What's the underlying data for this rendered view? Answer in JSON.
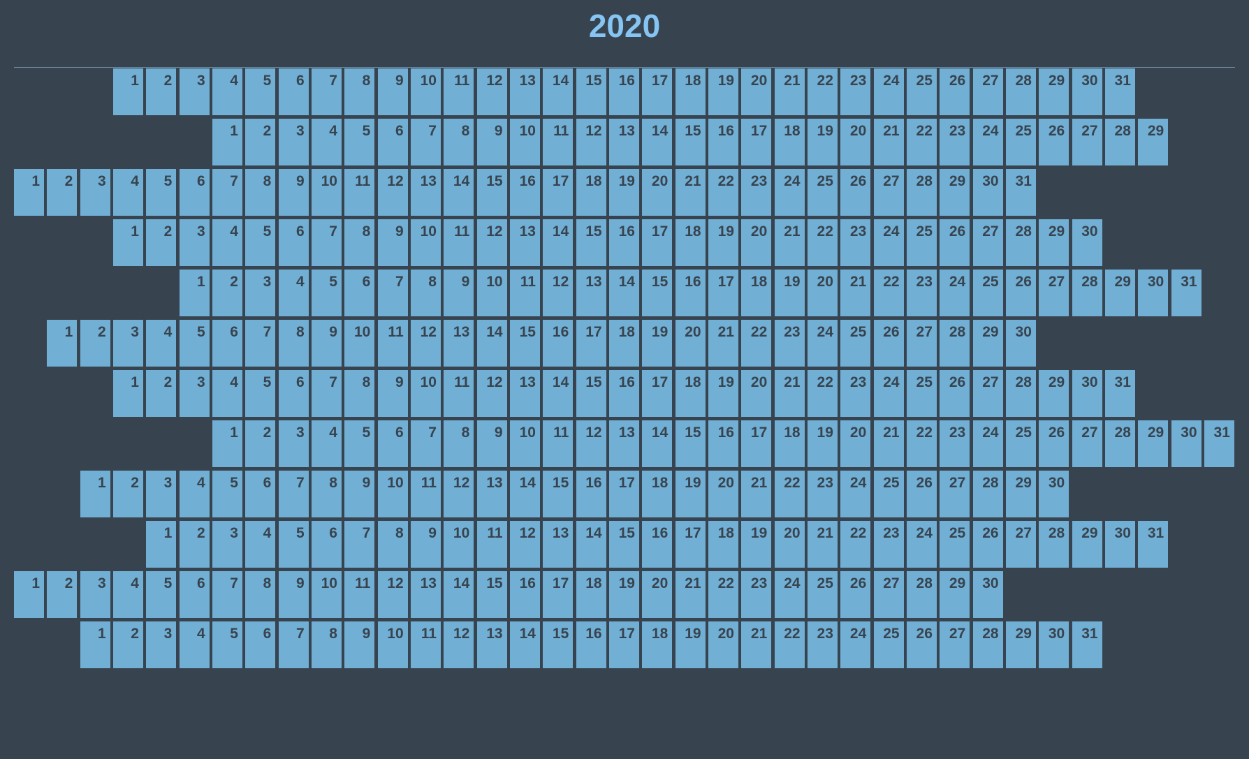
{
  "title": "2020",
  "year": 2020,
  "colors": {
    "background": "#37444f",
    "cell": "#72afd4",
    "title": "#86c5f3",
    "day_text": "#37444f"
  },
  "months": [
    {
      "days": 31
    },
    {
      "days": 29
    },
    {
      "days": 31
    },
    {
      "days": 30
    },
    {
      "days": 31
    },
    {
      "days": 30
    },
    {
      "days": 31
    },
    {
      "days": 31
    },
    {
      "days": 30
    },
    {
      "days": 31
    },
    {
      "days": 30
    },
    {
      "days": 31
    }
  ]
}
